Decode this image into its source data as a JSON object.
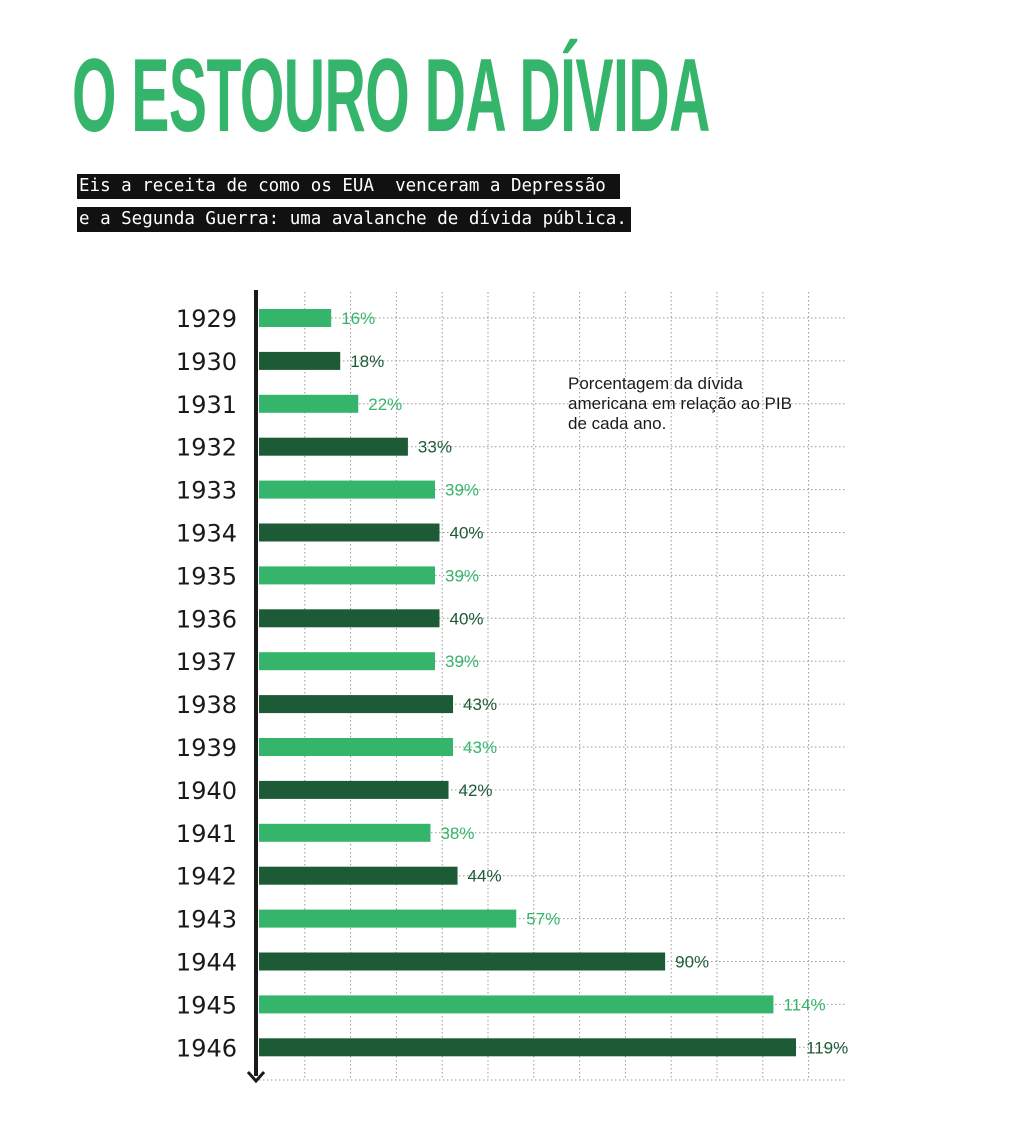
{
  "header": {
    "title": "O ESTOURO DA DÍVIDA",
    "subtitle_line1": "Eis a receita de como os EUA  venceram a Depressão ",
    "subtitle_line2": "e a Segunda Guerra: uma avalanche de dívida pública."
  },
  "note": "Porcentagem da dívida americana em relação ao PIB de cada ano.",
  "colors": {
    "title": "#35b56b",
    "bar_light": "#35b56b",
    "bar_dark": "#1d5a36",
    "grid": "#9a9a9a",
    "axis": "#1a1a1a"
  },
  "chart_data": {
    "type": "bar",
    "orientation": "horizontal",
    "categories": [
      "1929",
      "1930",
      "1931",
      "1932",
      "1933",
      "1934",
      "1935",
      "1936",
      "1937",
      "1938",
      "1939",
      "1940",
      "1941",
      "1942",
      "1943",
      "1944",
      "1945",
      "1946"
    ],
    "values": [
      16,
      18,
      22,
      33,
      39,
      40,
      39,
      40,
      39,
      43,
      43,
      42,
      38,
      44,
      57,
      90,
      114,
      119
    ],
    "value_labels": [
      "16%",
      "18%",
      "22%",
      "33%",
      "39%",
      "40%",
      "39%",
      "40%",
      "39%",
      "43%",
      "43%",
      "42%",
      "38%",
      "44%",
      "57%",
      "90%",
      "114%",
      "119%"
    ],
    "bar_colors": [
      "light",
      "dark",
      "light",
      "dark",
      "light",
      "dark",
      "light",
      "dark",
      "light",
      "dark",
      "light",
      "dark",
      "light",
      "dark",
      "light",
      "dark",
      "light",
      "dark"
    ],
    "xlim": [
      0,
      130
    ],
    "grid": true,
    "xlabel": "",
    "ylabel": ""
  }
}
